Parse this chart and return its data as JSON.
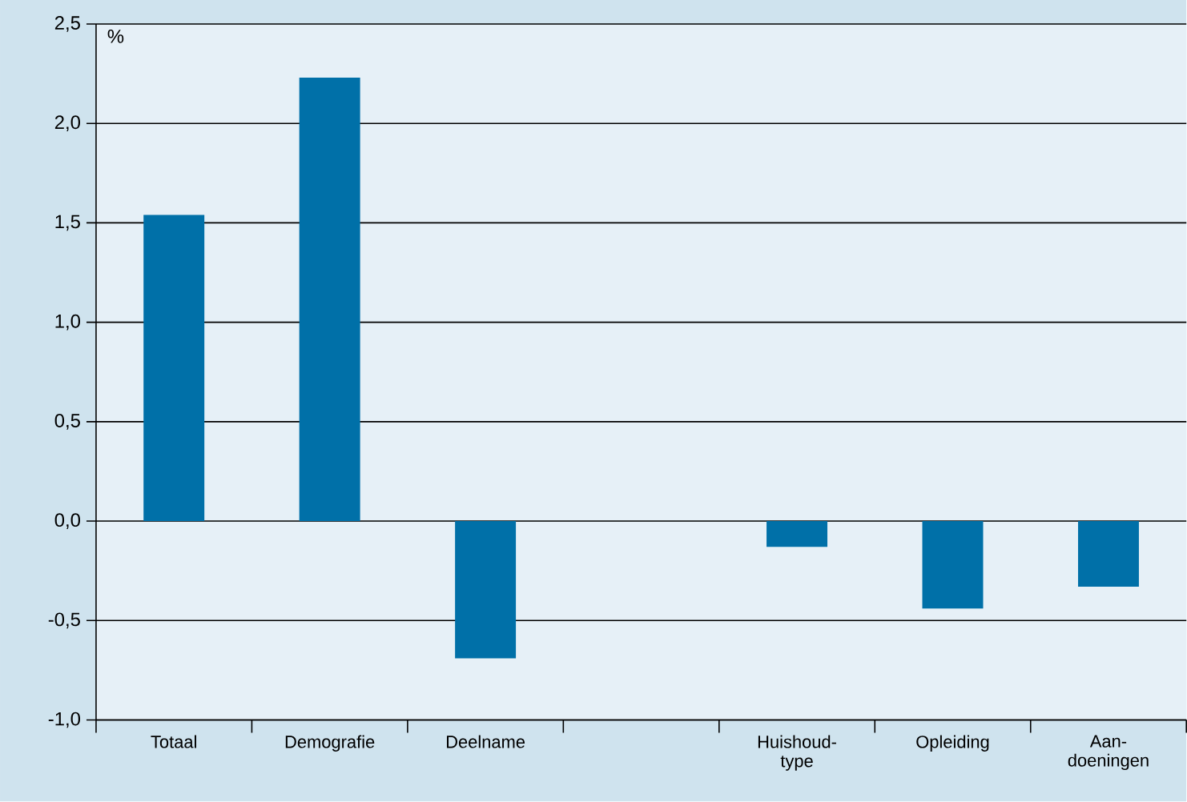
{
  "chart_data": {
    "type": "bar",
    "ylabel": "%",
    "categories": [
      "Totaal",
      "Demografie",
      "Deelname",
      null,
      "Huishoud-type",
      "Opleiding",
      "Aan-doeningen"
    ],
    "values": [
      1.54,
      2.23,
      -0.69,
      null,
      -0.13,
      -0.44,
      -0.33
    ],
    "color": "#0070a8",
    "ylim": [
      -1.0,
      2.5
    ],
    "yticks": [
      {
        "value": -1.0,
        "label": "-1,0"
      },
      {
        "value": -0.5,
        "label": "-0,5"
      },
      {
        "value": 0,
        "label": "0,0"
      },
      {
        "value": 0.5,
        "label": "0,5"
      },
      {
        "value": 1.0,
        "label": "1,0"
      },
      {
        "value": 1.5,
        "label": "1,5"
      },
      {
        "value": 2.0,
        "label": "2,0"
      },
      {
        "value": 2.5,
        "label": "2,5"
      }
    ],
    "grid": "y"
  }
}
